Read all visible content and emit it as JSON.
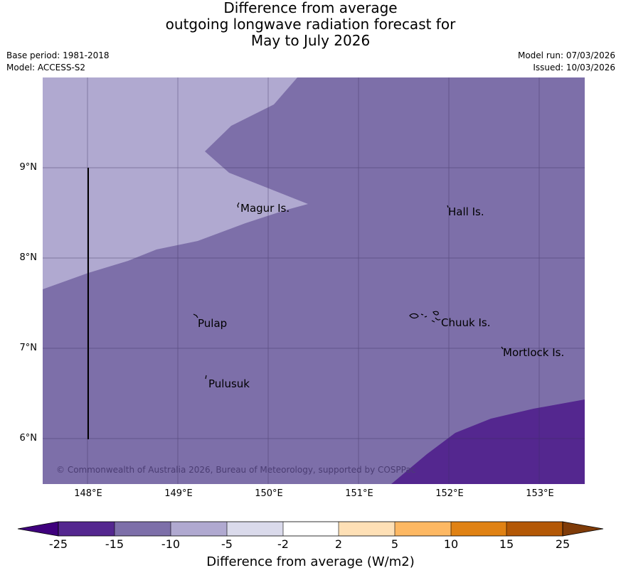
{
  "title": {
    "line1": "Difference from average",
    "line2": "outgoing longwave radiation forecast for",
    "line3": "May to July 2026"
  },
  "meta": {
    "base_period": "Base period: 1981-2018",
    "model": "Model: ACCESS-S2",
    "model_run": "Model run: 07/03/2026",
    "issued": "Issued: 10/03/2026"
  },
  "map": {
    "latitude_labels": [
      "9°N",
      "8°N",
      "7°N",
      "6°N"
    ],
    "longitude_labels": [
      "148°E",
      "149°E",
      "150°E",
      "151°E",
      "152°E",
      "153°E"
    ],
    "places": [
      "Magur Is.",
      "Hall Is.",
      "Pulap",
      "Chuuk Is.",
      "Mortlock Is.",
      "Pulusuk"
    ],
    "copyright": "© Commonwealth of Australia 2026, Bureau of Meteorology, supported by COSPPac"
  },
  "colorbar": {
    "ticks": [
      "-25",
      "-15",
      "-10",
      "-5",
      "-2",
      "2",
      "5",
      "10",
      "15",
      "25"
    ],
    "colors": {
      "below_-25": "#3f007d",
      "-25_-15": "#54278f",
      "-15_-10": "#7d6fa9",
      "-10_-5": "#b0a9d0",
      "-5_-2": "#dadaeb",
      "-2_2": "#ffffff",
      "2_5": "#fee0b6",
      "5_10": "#fdb863",
      "10_15": "#e08214",
      "15_25": "#b35806",
      "above_25": "#7f3b08"
    },
    "label": "Difference from average (W/m2)"
  }
}
